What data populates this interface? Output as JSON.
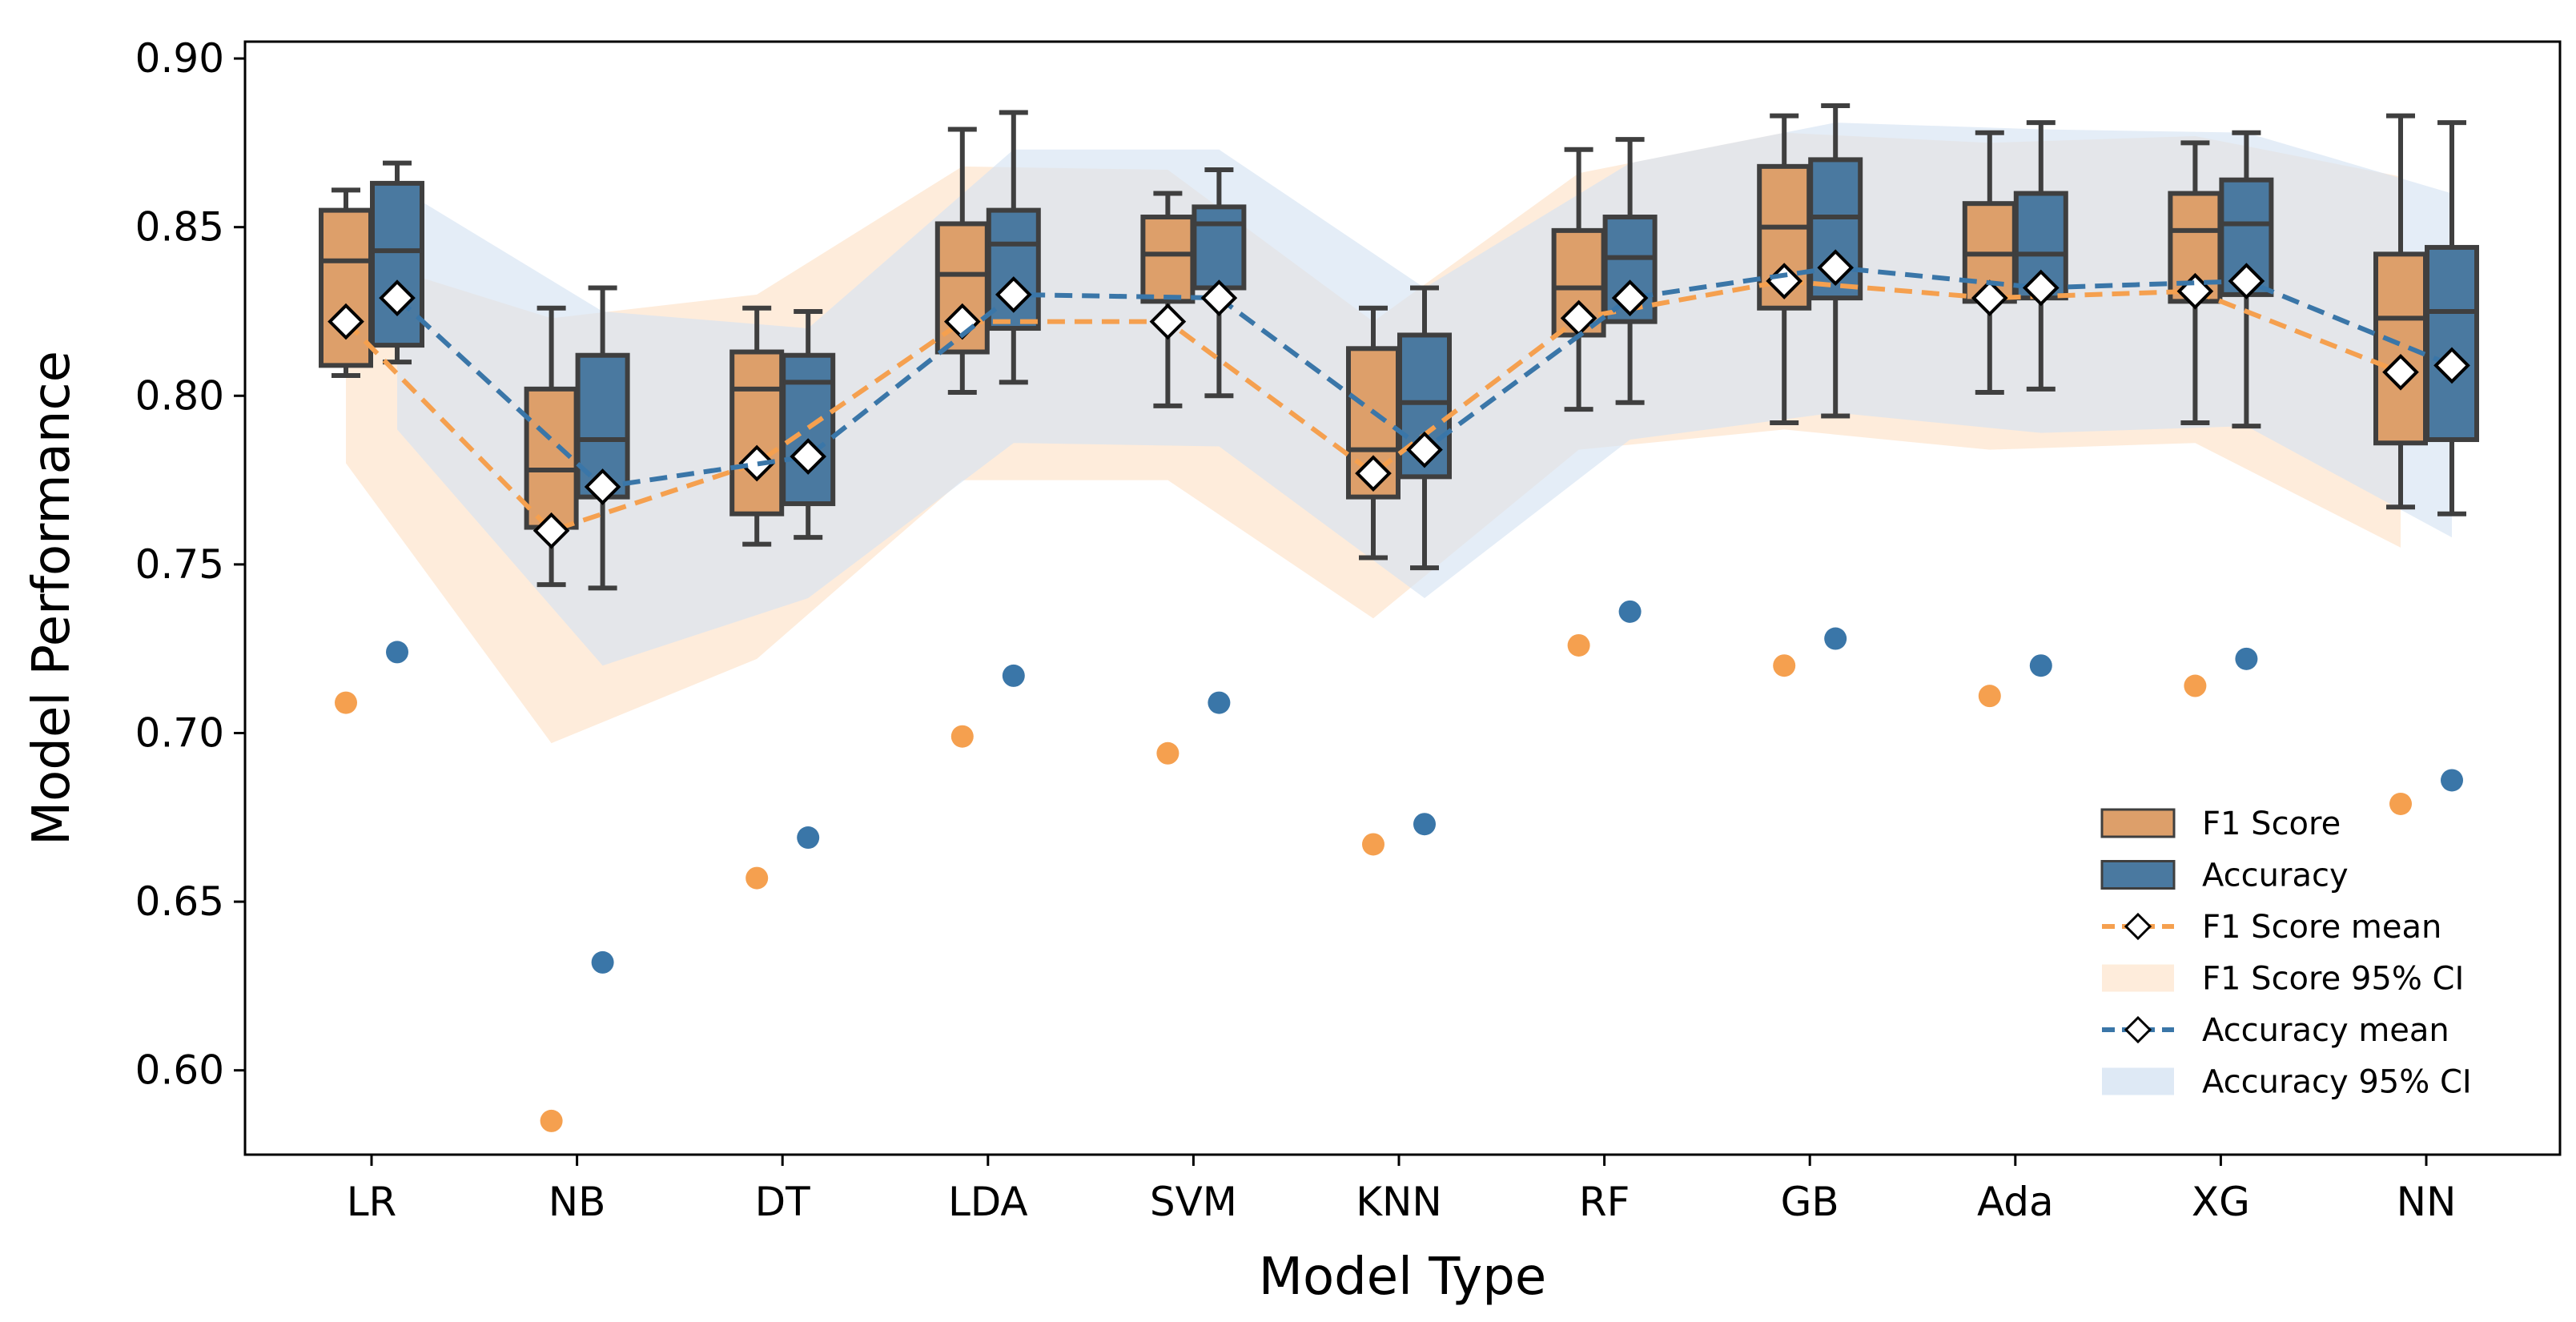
{
  "chart_data": {
    "type": "box",
    "xlabel": "Model Type",
    "ylabel": "Model Performance",
    "ylim": [
      0.575,
      0.905
    ],
    "yticks": [
      "0.60",
      "0.65",
      "0.70",
      "0.75",
      "0.80",
      "0.85",
      "0.90"
    ],
    "yticks_values": [
      0.6,
      0.65,
      0.7,
      0.75,
      0.8,
      0.85,
      0.9
    ],
    "categories": [
      "LR",
      "NB",
      "DT",
      "LDA",
      "SVM",
      "KNN",
      "RF",
      "GB",
      "Ada",
      "XG",
      "NN"
    ],
    "colors": {
      "f1_box": "#dd9f6a",
      "acc_box": "#4a79a0",
      "f1_line": "#f5a04f",
      "acc_line": "#3a76a8",
      "f1_ci": "#fde6cf",
      "acc_ci": "#d6e4f2",
      "box_edge": "#3f3f3f"
    },
    "series": [
      {
        "name": "F1 Score",
        "whisker_low": [
          0.806,
          0.744,
          0.756,
          0.801,
          0.797,
          0.752,
          0.796,
          0.792,
          0.801,
          0.792,
          0.767
        ],
        "q1": [
          0.809,
          0.761,
          0.765,
          0.813,
          0.828,
          0.77,
          0.818,
          0.826,
          0.828,
          0.828,
          0.786
        ],
        "median": [
          0.84,
          0.778,
          0.802,
          0.836,
          0.842,
          0.784,
          0.832,
          0.85,
          0.842,
          0.849,
          0.823
        ],
        "q3": [
          0.855,
          0.802,
          0.813,
          0.851,
          0.853,
          0.814,
          0.849,
          0.868,
          0.857,
          0.86,
          0.842
        ],
        "whisker_high": [
          0.861,
          0.826,
          0.826,
          0.879,
          0.86,
          0.826,
          0.873,
          0.883,
          0.878,
          0.875,
          0.883
        ],
        "mean": [
          0.822,
          0.76,
          0.78,
          0.822,
          0.822,
          0.777,
          0.823,
          0.834,
          0.829,
          0.831,
          0.807
        ],
        "outliers": [
          0.709,
          0.585,
          0.657,
          0.699,
          0.694,
          0.667,
          0.726,
          0.72,
          0.711,
          0.714,
          0.679
        ],
        "ci_upper": [
          0.842,
          0.823,
          0.83,
          0.868,
          0.867,
          0.822,
          0.866,
          0.878,
          0.875,
          0.877,
          0.865
        ],
        "ci_lower": [
          0.78,
          0.697,
          0.722,
          0.775,
          0.775,
          0.734,
          0.784,
          0.79,
          0.784,
          0.786,
          0.755
        ]
      },
      {
        "name": "Accuracy",
        "whisker_low": [
          0.81,
          0.743,
          0.758,
          0.804,
          0.8,
          0.749,
          0.798,
          0.794,
          0.802,
          0.791,
          0.765
        ],
        "q1": [
          0.815,
          0.77,
          0.768,
          0.82,
          0.832,
          0.776,
          0.822,
          0.829,
          0.829,
          0.83,
          0.787
        ],
        "median": [
          0.843,
          0.787,
          0.804,
          0.845,
          0.851,
          0.798,
          0.841,
          0.853,
          0.842,
          0.851,
          0.825
        ],
        "q3": [
          0.863,
          0.812,
          0.812,
          0.855,
          0.856,
          0.818,
          0.853,
          0.87,
          0.86,
          0.864,
          0.844
        ],
        "whisker_high": [
          0.869,
          0.832,
          0.825,
          0.884,
          0.867,
          0.832,
          0.876,
          0.886,
          0.881,
          0.878,
          0.881
        ],
        "mean": [
          0.829,
          0.773,
          0.782,
          0.83,
          0.829,
          0.784,
          0.829,
          0.838,
          0.832,
          0.834,
          0.809
        ],
        "outliers": [
          0.724,
          0.632,
          0.669,
          0.717,
          0.709,
          0.673,
          0.736,
          0.728,
          0.72,
          0.722,
          0.686
        ],
        "ci_upper": [
          0.862,
          0.825,
          0.82,
          0.873,
          0.873,
          0.832,
          0.869,
          0.881,
          0.879,
          0.878,
          0.86
        ],
        "ci_lower": [
          0.79,
          0.72,
          0.74,
          0.786,
          0.785,
          0.74,
          0.787,
          0.795,
          0.789,
          0.791,
          0.758
        ]
      }
    ],
    "legend": {
      "position": "lower-right",
      "items": [
        "F1 Score",
        "Accuracy",
        "F1 Score mean",
        "F1 Score 95% CI",
        "Accuracy mean",
        "Accuracy 95% CI"
      ]
    }
  }
}
